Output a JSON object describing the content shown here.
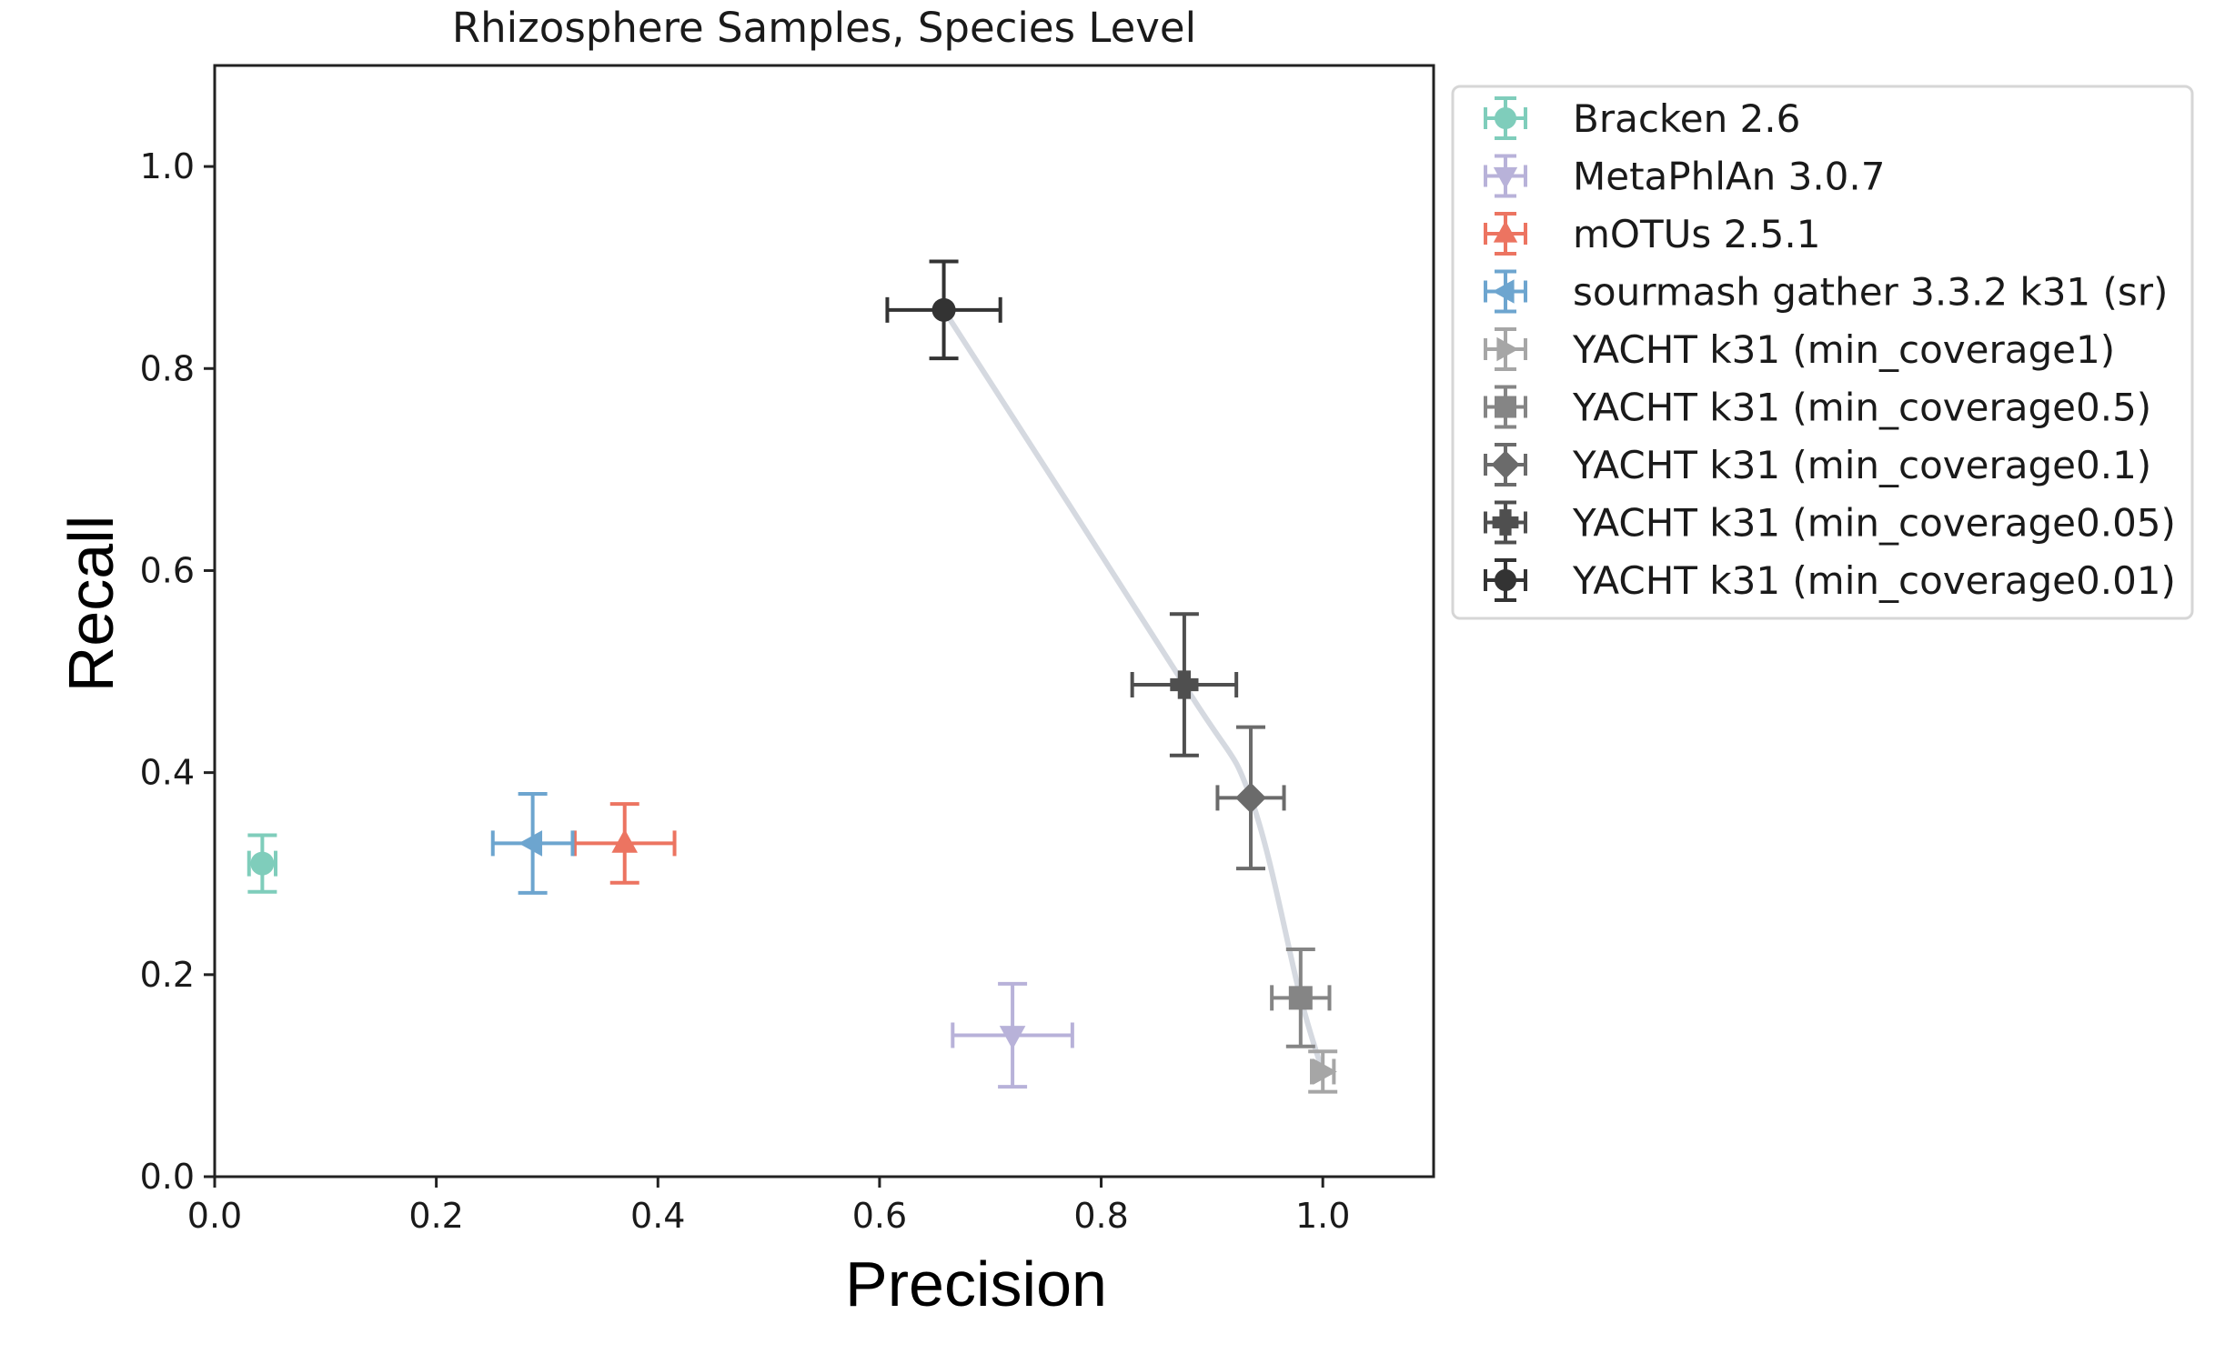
{
  "chart_data": {
    "type": "scatter",
    "title": "Rhizosphere Samples, Species Level",
    "xlabel": "Precision",
    "ylabel": "Recall",
    "xlim": [
      0.0,
      1.1
    ],
    "ylim": [
      0.0,
      1.1
    ],
    "xticks": [
      0.0,
      0.2,
      0.4,
      0.6,
      0.8,
      1.0
    ],
    "yticks": [
      0.0,
      0.2,
      0.4,
      0.6,
      0.8,
      1.0
    ],
    "xtick_labels": [
      "0.0",
      "0.2",
      "0.4",
      "0.6",
      "0.8",
      "1.0"
    ],
    "ytick_labels": [
      "0.0",
      "0.2",
      "0.4",
      "0.6",
      "0.8",
      "1.0"
    ],
    "grid": false,
    "legend_position": "outside-right-top",
    "series": [
      {
        "name": "Bracken 2.6",
        "marker": "circle",
        "color": "#7fcdbb",
        "x": 0.043,
        "y": 0.31,
        "xerr": 0.012,
        "yerr": 0.028
      },
      {
        "name": "MetaPhlAn 3.0.7",
        "marker": "triangle-down",
        "color": "#b8b2d9",
        "x": 0.72,
        "y": 0.14,
        "xerr": 0.054,
        "yerr": 0.051
      },
      {
        "name": "mOTUs 2.5.1",
        "marker": "triangle-up",
        "color": "#ec7461",
        "x": 0.37,
        "y": 0.33,
        "xerr": 0.045,
        "yerr": 0.039
      },
      {
        "name": "sourmash gather 3.3.2 k31 (sr)",
        "marker": "triangle-left",
        "color": "#6da5cf",
        "x": 0.287,
        "y": 0.33,
        "xerr": 0.036,
        "yerr": 0.049
      },
      {
        "name": "YACHT k31 (min_coverage1)",
        "marker": "triangle-right",
        "color": "#a6a6a6",
        "x": 1.0,
        "y": 0.104,
        "xerr": 0.01,
        "yerr": 0.02
      },
      {
        "name": "YACHT k31 (min_coverage0.5)",
        "marker": "square",
        "color": "#858585",
        "x": 0.98,
        "y": 0.177,
        "xerr": 0.026,
        "yerr": 0.048
      },
      {
        "name": "YACHT k31 (min_coverage0.1)",
        "marker": "diamond",
        "color": "#6b6b6b",
        "x": 0.935,
        "y": 0.375,
        "xerr": 0.03,
        "yerr": 0.07
      },
      {
        "name": "YACHT k31 (min_coverage0.05)",
        "marker": "plus",
        "color": "#4f4f4f",
        "x": 0.875,
        "y": 0.487,
        "xerr": 0.047,
        "yerr": 0.07
      },
      {
        "name": "YACHT k31 (min_coverage0.01)",
        "marker": "circle",
        "color": "#333333",
        "x": 0.658,
        "y": 0.858,
        "xerr": 0.051,
        "yerr": 0.048
      }
    ],
    "curve": {
      "color": "#d5d9e0",
      "points": [
        [
          0.658,
          0.858
        ],
        [
          0.875,
          0.487
        ],
        [
          0.935,
          0.375
        ],
        [
          0.98,
          0.177
        ],
        [
          1.0,
          0.104
        ]
      ]
    }
  }
}
